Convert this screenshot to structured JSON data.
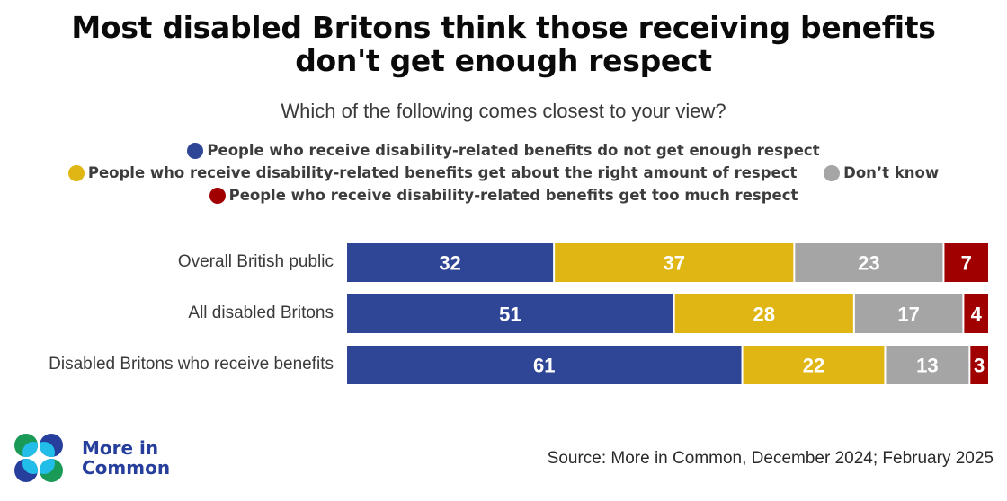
{
  "chart_data": {
    "type": "bar",
    "orientation": "horizontal",
    "stacked": true,
    "title": "Most disabled Britons think those receiving benefits don't get enough respect",
    "title_lines": [
      "Most disabled Britons think those receiving benefits",
      "don't get enough respect"
    ],
    "subtitle": "Which of the following comes closest to your view?",
    "xlabel": "",
    "ylabel": "",
    "xlim": [
      0,
      100
    ],
    "grid": false,
    "legend_position": "top-center",
    "categories": [
      "Overall British public",
      "All disabled Britons",
      "Disabled Britons who receive benefits"
    ],
    "series": [
      {
        "name": "People who receive disability-related benefits do not get enough respect",
        "color": "#2f4596",
        "values": [
          32,
          51,
          61
        ]
      },
      {
        "name": "People who receive disability-related benefits get about the right amount of respect",
        "color": "#e0b614",
        "values": [
          37,
          28,
          22
        ]
      },
      {
        "name": "Don’t know",
        "color": "#a5a5a5",
        "values": [
          23,
          17,
          13
        ]
      },
      {
        "name": "People who receive disability-related benefits get too much respect",
        "color": "#a00000",
        "values": [
          7,
          4,
          3
        ]
      }
    ]
  },
  "legend": {
    "lines": [
      [
        0
      ],
      [
        1,
        2
      ],
      [
        3
      ]
    ]
  },
  "footer": {
    "logo_text_line1": "More in",
    "logo_text_line2": "Common",
    "source": "Source: More in Common, December 2024; February 2025",
    "logo_colors": {
      "green": "#1a9a57",
      "navy": "#273f9c",
      "cyan": "#22bde8"
    }
  }
}
